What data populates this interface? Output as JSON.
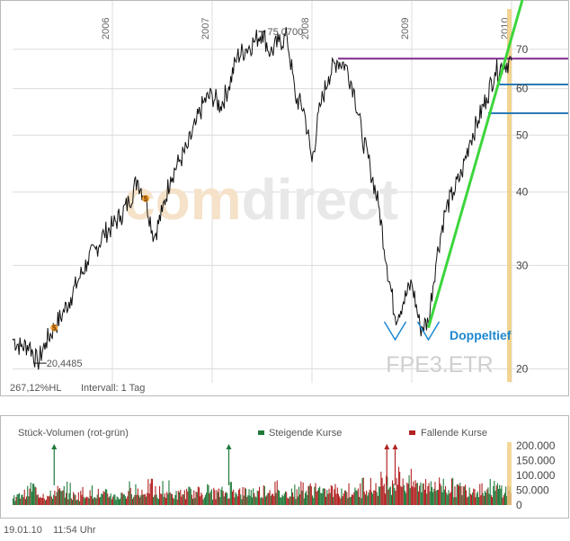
{
  "chart_data": [
    {
      "type": "line",
      "symbol": "FPE3.ETR",
      "watermark": "comdirect",
      "y_scale": "log",
      "ylim": [
        19,
        82
      ],
      "y_ticks": [
        20,
        30,
        40,
        50,
        60,
        70
      ],
      "y_tick_labels": [
        "20",
        "30",
        "40",
        "50",
        "60",
        "70"
      ],
      "x_tick_labels": [
        "2006",
        "2007",
        "2008",
        "2009",
        "2010"
      ],
      "x": [
        "2005-01",
        "2005-02",
        "2005-03",
        "2005-04",
        "2005-05",
        "2005-06",
        "2005-07",
        "2005-08",
        "2005-09",
        "2005-10",
        "2005-11",
        "2005-12",
        "2006-01",
        "2006-02",
        "2006-03",
        "2006-04",
        "2006-05",
        "2006-06",
        "2006-07",
        "2006-08",
        "2006-09",
        "2006-10",
        "2006-11",
        "2006-12",
        "2007-01",
        "2007-02",
        "2007-03",
        "2007-04",
        "2007-05",
        "2007-06",
        "2007-07",
        "2007-08",
        "2007-09",
        "2007-10",
        "2007-11",
        "2007-12",
        "2008-01",
        "2008-02",
        "2008-03",
        "2008-04",
        "2008-05",
        "2008-06",
        "2008-07",
        "2008-08",
        "2008-09",
        "2008-10",
        "2008-11",
        "2008-12",
        "2009-01",
        "2009-02",
        "2009-03",
        "2009-04",
        "2009-05",
        "2009-06",
        "2009-07",
        "2009-08",
        "2009-09",
        "2009-10",
        "2009-11",
        "2009-12",
        "2010-01"
      ],
      "series": [
        {
          "values": [
            22.5,
            21.8,
            22.0,
            20.45,
            22.2,
            23.5,
            24.8,
            26.5,
            28.5,
            30.5,
            32.0,
            34.0,
            35.0,
            36.5,
            38.5,
            42.0,
            39.0,
            33.5,
            37.0,
            42.5,
            45.0,
            47.5,
            52.0,
            57.0,
            58.5,
            56.0,
            60.5,
            68.0,
            70.0,
            72.0,
            75.07,
            69.0,
            72.0,
            73.5,
            58.0,
            55.5,
            45.0,
            56.0,
            63.0,
            67.0,
            66.0,
            60.0,
            50.0,
            44.0,
            38.0,
            30.0,
            24.5,
            26.0,
            28.0,
            23.5,
            24.0,
            31.0,
            37.0,
            40.0,
            43.0,
            49.0,
            53.0,
            58.0,
            64.0,
            66.0,
            67.0
          ]
        }
      ],
      "annotations": {
        "high_label": "75,0700",
        "low_label": "20,4485",
        "pattern_label": "Doppeltief",
        "dividend_marker": "$",
        "dividend_dates": [
          "2005-06",
          "2006-05"
        ],
        "resistance_lines": [
          {
            "y": 67.5,
            "color": "#7b2a8e"
          },
          {
            "y": 61.0,
            "color": "#2a7ab8"
          },
          {
            "y": 54.5,
            "color": "#2a7ab8"
          }
        ],
        "trendline": {
          "from": [
            "2009-03",
            23.5
          ],
          "to": [
            "2010-01",
            80.0
          ],
          "color": "#3cd63c"
        },
        "double_bottom_dates": [
          "2008-11",
          "2009-03"
        ],
        "marker_color": "#1e88d0",
        "current_line_color": "#f0cc80"
      },
      "footer": {
        "change": "267,12%HL",
        "interval": "Intervall: 1 Tag"
      }
    },
    {
      "type": "bar",
      "title": "Stück-Volumen (rot-grün)",
      "legend": [
        {
          "name": "Steigende Kurse",
          "color": "#1f7a3a"
        },
        {
          "name": "Fallende Kurse",
          "color": "#b22222"
        }
      ],
      "ylim": [
        0,
        200000
      ],
      "y_ticks": [
        0,
        50000,
        100000,
        150000,
        200000
      ],
      "y_tick_labels": [
        "0",
        "50.000",
        "100.000",
        "150.000",
        "200.000"
      ],
      "x": [
        "2005-01",
        "2005-02",
        "2005-03",
        "2005-04",
        "2005-05",
        "2005-06",
        "2005-07",
        "2005-08",
        "2005-09",
        "2005-10",
        "2005-11",
        "2005-12",
        "2006-01",
        "2006-02",
        "2006-03",
        "2006-04",
        "2006-05",
        "2006-06",
        "2006-07",
        "2006-08",
        "2006-09",
        "2006-10",
        "2006-11",
        "2006-12",
        "2007-01",
        "2007-02",
        "2007-03",
        "2007-04",
        "2007-05",
        "2007-06",
        "2007-07",
        "2007-08",
        "2007-09",
        "2007-10",
        "2007-11",
        "2007-12",
        "2008-01",
        "2008-02",
        "2008-03",
        "2008-04",
        "2008-05",
        "2008-06",
        "2008-07",
        "2008-08",
        "2008-09",
        "2008-10",
        "2008-11",
        "2008-12",
        "2009-01",
        "2009-02",
        "2009-03",
        "2009-04",
        "2009-05",
        "2009-06",
        "2009-07",
        "2009-08",
        "2009-09",
        "2009-10",
        "2009-11",
        "2009-12",
        "2010-01"
      ],
      "series": [
        {
          "name": "Steigende Kurse",
          "values": [
            30000,
            45000,
            60000,
            25000,
            35000,
            40000,
            55000,
            30000,
            28000,
            50000,
            32000,
            38000,
            30000,
            42000,
            58000,
            35000,
            48000,
            30000,
            60000,
            36000,
            34000,
            45000,
            40000,
            52000,
            38000,
            44000,
            62000,
            35000,
            46000,
            40000,
            55000,
            42000,
            38000,
            50000,
            45000,
            48000,
            52000,
            40000,
            46000,
            58000,
            44000,
            42000,
            70000,
            50000,
            55000,
            75000,
            62000,
            70000,
            60000,
            66000,
            58000,
            72000,
            64000,
            55000,
            60000,
            58000,
            52000,
            62000,
            56000,
            50000,
            48000
          ]
        },
        {
          "name": "Fallende Kurse",
          "values": [
            35000,
            38000,
            48000,
            40000,
            30000,
            52000,
            38000,
            34000,
            45000,
            36000,
            40000,
            32000,
            38000,
            34000,
            45000,
            52000,
            62000,
            48000,
            40000,
            35000,
            42000,
            36000,
            44000,
            38000,
            42000,
            40000,
            50000,
            45000,
            40000,
            48000,
            52000,
            60000,
            46000,
            44000,
            65000,
            58000,
            68000,
            50000,
            52000,
            45000,
            55000,
            60000,
            72000,
            66000,
            80000,
            110000,
            95000,
            85000,
            75000,
            90000,
            88000,
            70000,
            65000,
            60000,
            55000,
            58000,
            60000,
            52000,
            56000,
            54000,
            50000
          ]
        }
      ],
      "clipped_markers": {
        "rising_dates": [
          "2005-06",
          "2007-03"
        ],
        "falling_dates": [
          "2008-10",
          "2008-11"
        ]
      }
    }
  ],
  "footer": {
    "date": "19.01.10",
    "time": "11:54 Uhr"
  }
}
